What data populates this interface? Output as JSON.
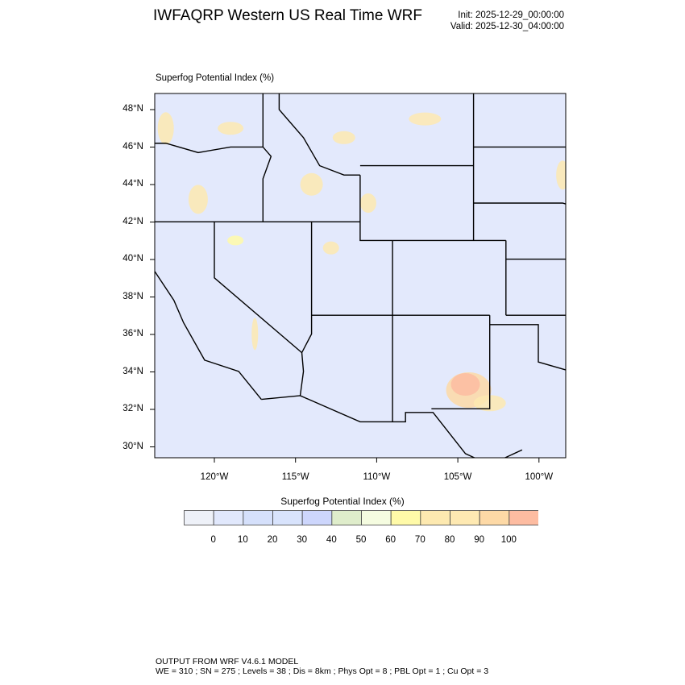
{
  "header": {
    "title": "IWFAQRP Western US Real Time WRF",
    "init": "Init: 2025-12-29_00:00:00",
    "valid": "Valid: 2025-12-30_04:00:00"
  },
  "map": {
    "field_label": "Superfog Potential Index   (%)",
    "background_color": "#e3e9fc",
    "lat_ticks": [
      "48°N",
      "46°N",
      "44°N",
      "42°N",
      "40°N",
      "38°N",
      "36°N",
      "34°N",
      "32°N",
      "30°N"
    ],
    "lon_ticks": [
      "120°W",
      "115°W",
      "110°W",
      "105°W",
      "100°W"
    ],
    "high_index_regions": [
      "southeastern New Mexico",
      "northern Montana",
      "North Dakota / Minnesota border",
      "western Washington",
      "Idaho / western Wyoming"
    ]
  },
  "colorbar": {
    "title": "Superfog Potential Index  (%)",
    "labels": [
      "0",
      "10",
      "20",
      "30",
      "40",
      "50",
      "60",
      "70",
      "80",
      "90",
      "100"
    ],
    "colors": [
      "#eef1f8",
      "#e1e8fc",
      "#d5e0fb",
      "#d8e3fc",
      "#cdd6fc",
      "#dfedcb",
      "#f5fce0",
      "#fffaa8",
      "#fde9b0",
      "#fee9b2",
      "#fdd9a6",
      "#fdbca1"
    ]
  },
  "footer": {
    "line1": "OUTPUT FROM WRF V4.6.1 MODEL",
    "line2": "WE = 310 ; SN = 275 ; Levels = 38 ; Dis = 8km ; Phys Opt = 8 ; PBL Opt = 1 ; Cu Opt = 3"
  }
}
